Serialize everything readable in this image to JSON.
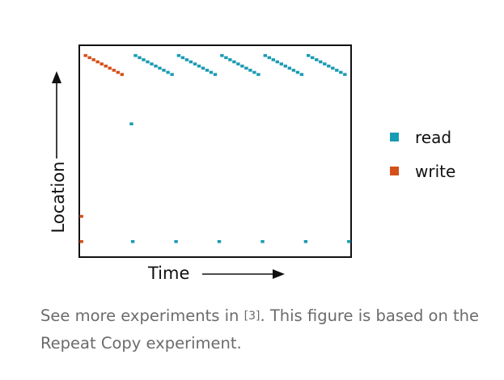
{
  "chart_data": {
    "type": "scatter",
    "title": "",
    "xlabel": "Time",
    "ylabel": "Location",
    "legend": {
      "position": "right",
      "entries": [
        "read",
        "write"
      ]
    },
    "colors": {
      "read": "#1a9bb4",
      "write": "#d4501a",
      "frame": "#111111",
      "text": "#111111"
    },
    "grid": false,
    "ticks": false,
    "x_range": [
      0,
      100
    ],
    "y_range": [
      0,
      100
    ],
    "series": [
      {
        "name": "write",
        "points": [
          [
            2,
            95.5
          ],
          [
            3.5,
            94.5
          ],
          [
            5,
            93.5
          ],
          [
            6.5,
            92.5
          ],
          [
            8,
            91.5
          ],
          [
            9.5,
            90.5
          ],
          [
            11,
            89.5
          ],
          [
            12.5,
            88.5
          ],
          [
            14,
            87.5
          ],
          [
            15.5,
            86.5
          ],
          [
            0.5,
            7
          ],
          [
            0.5,
            19
          ]
        ]
      },
      {
        "name": "read",
        "points": [
          [
            20.5,
            95.5
          ],
          [
            22,
            94.5
          ],
          [
            23.5,
            93.5
          ],
          [
            25,
            92.5
          ],
          [
            26.5,
            91.5
          ],
          [
            28,
            90.5
          ],
          [
            29.5,
            89.5
          ],
          [
            31,
            88.5
          ],
          [
            32.5,
            87.5
          ],
          [
            34,
            86.5
          ],
          [
            36.5,
            95.5
          ],
          [
            38,
            94.5
          ],
          [
            39.5,
            93.5
          ],
          [
            41,
            92.5
          ],
          [
            42.5,
            91.5
          ],
          [
            44,
            90.5
          ],
          [
            45.5,
            89.5
          ],
          [
            47,
            88.5
          ],
          [
            48.5,
            87.5
          ],
          [
            50,
            86.5
          ],
          [
            52.5,
            95.5
          ],
          [
            54,
            94.5
          ],
          [
            55.5,
            93.5
          ],
          [
            57,
            92.5
          ],
          [
            58.5,
            91.5
          ],
          [
            60,
            90.5
          ],
          [
            61.5,
            89.5
          ],
          [
            63,
            88.5
          ],
          [
            64.5,
            87.5
          ],
          [
            66,
            86.5
          ],
          [
            68.5,
            95.5
          ],
          [
            70,
            94.5
          ],
          [
            71.5,
            93.5
          ],
          [
            73,
            92.5
          ],
          [
            74.5,
            91.5
          ],
          [
            76,
            90.5
          ],
          [
            77.5,
            89.5
          ],
          [
            79,
            88.5
          ],
          [
            80.5,
            87.5
          ],
          [
            82,
            86.5
          ],
          [
            84.5,
            95.5
          ],
          [
            86,
            94.5
          ],
          [
            87.5,
            93.5
          ],
          [
            89,
            92.5
          ],
          [
            90.5,
            91.5
          ],
          [
            92,
            90.5
          ],
          [
            93.5,
            89.5
          ],
          [
            95,
            88.5
          ],
          [
            96.5,
            87.5
          ],
          [
            98,
            86.5
          ],
          [
            19,
            63
          ],
          [
            19.5,
            7
          ],
          [
            35.5,
            7
          ],
          [
            51.5,
            7
          ],
          [
            67.5,
            7
          ],
          [
            83.5,
            7
          ],
          [
            99.5,
            7
          ]
        ]
      }
    ]
  },
  "caption": {
    "before_ref": "See more experiments in ",
    "ref": "[3]",
    "after_ref": ". This figure is based on the Repeat Copy experiment."
  }
}
